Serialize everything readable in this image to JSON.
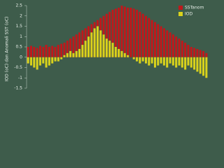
{
  "chart_data": {
    "type": "bar",
    "y_label": "IOD (oC) dan Anomali SST (oC)",
    "categories": [
      null,
      null,
      null,
      null,
      null,
      null,
      null,
      null,
      null,
      null,
      null,
      null,
      null,
      null,
      null,
      null,
      null,
      null,
      null,
      null,
      null,
      null,
      null,
      null,
      null,
      null,
      null,
      null,
      null,
      null,
      null,
      null,
      null,
      null,
      null,
      null,
      null,
      null,
      null,
      null,
      null,
      null,
      null,
      null,
      null,
      null,
      null,
      null,
      null,
      null,
      null,
      null,
      null,
      null,
      null,
      null,
      null,
      null,
      null,
      null
    ],
    "series": [
      {
        "name": "SSTanom",
        "color": "#c0181b",
        "values": [
          0.5,
          0.55,
          0.5,
          0.45,
          0.55,
          0.5,
          0.6,
          0.5,
          0.55,
          0.5,
          0.6,
          0.65,
          0.7,
          0.8,
          0.9,
          1.0,
          1.1,
          1.2,
          1.3,
          1.4,
          1.5,
          1.6,
          1.7,
          1.8,
          1.9,
          2.0,
          2.1,
          2.2,
          2.3,
          2.35,
          2.4,
          2.5,
          2.45,
          2.4,
          2.4,
          2.35,
          2.3,
          2.2,
          2.1,
          2.0,
          1.9,
          1.8,
          1.7,
          1.6,
          1.5,
          1.4,
          1.3,
          1.2,
          1.1,
          1.0,
          0.9,
          0.8,
          0.7,
          0.6,
          0.5,
          0.45,
          0.4,
          0.35,
          0.3,
          0.2
        ]
      },
      {
        "name": "IOD",
        "color": "#d9d21c",
        "values": [
          -0.3,
          -0.4,
          -0.5,
          -0.6,
          -0.4,
          -0.3,
          -0.5,
          -0.4,
          -0.3,
          -0.2,
          -0.2,
          -0.1,
          0.1,
          0.2,
          0.3,
          0.2,
          0.3,
          0.4,
          0.6,
          0.8,
          1.0,
          1.2,
          1.4,
          1.5,
          1.3,
          1.1,
          0.9,
          0.8,
          0.7,
          0.5,
          0.4,
          0.3,
          0.2,
          0.1,
          0,
          -0.1,
          -0.2,
          -0.3,
          -0.2,
          -0.3,
          -0.4,
          -0.3,
          -0.5,
          -0.4,
          -0.3,
          -0.4,
          -0.5,
          -0.3,
          -0.4,
          -0.5,
          -0.4,
          -0.5,
          -0.6,
          -0.4,
          -0.5,
          -0.6,
          -0.7,
          -0.8,
          -0.9,
          -1.0
        ]
      }
    ],
    "ylim": [
      -1.5,
      2.5
    ],
    "yticks": [
      -1.5,
      -1,
      -0.5,
      0,
      0.5,
      1,
      1.5,
      2,
      2.5
    ],
    "legend": "upper right"
  }
}
